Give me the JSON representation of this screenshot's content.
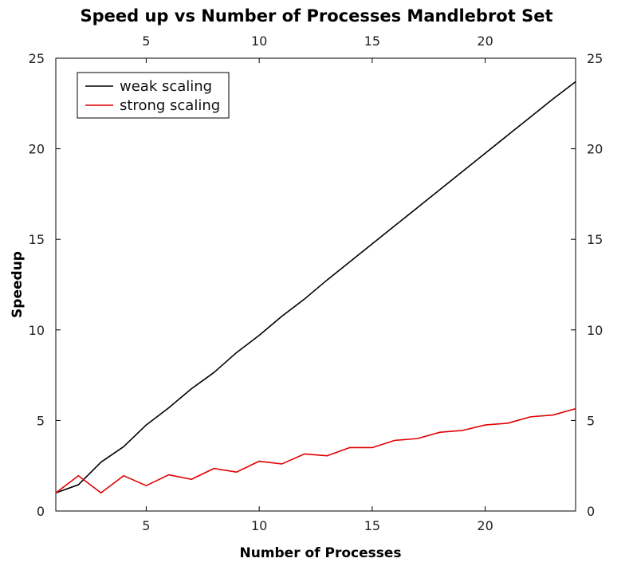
{
  "chart_data": {
    "type": "line",
    "title": "Speed up vs Number of Processes Mandlebrot Set",
    "xlabel": "Number of Processes",
    "ylabel": "Speedup",
    "xlim": [
      1,
      24
    ],
    "ylim": [
      0,
      25
    ],
    "x_ticks": [
      "5",
      "10",
      "15",
      "20"
    ],
    "x_tick_values": [
      5,
      10,
      15,
      20
    ],
    "y_ticks": [
      "0",
      "5",
      "10",
      "15",
      "20",
      "25"
    ],
    "y_tick_values": [
      0,
      5,
      10,
      15,
      20,
      25
    ],
    "grid": false,
    "legend_position": "top-left",
    "x": [
      1,
      2,
      3,
      4,
      5,
      6,
      7,
      8,
      9,
      10,
      11,
      12,
      13,
      14,
      15,
      16,
      17,
      18,
      19,
      20,
      21,
      22,
      23,
      24
    ],
    "series": [
      {
        "name": "weak scaling",
        "color": "#000000",
        "values": [
          1.0,
          1.45,
          2.7,
          3.55,
          4.75,
          5.7,
          6.75,
          7.65,
          8.75,
          9.7,
          10.75,
          11.7,
          12.75,
          13.75,
          14.75,
          15.75,
          16.75,
          17.75,
          18.75,
          19.75,
          20.75,
          21.75,
          22.75,
          23.7
        ]
      },
      {
        "name": "strong scaling",
        "color": "#e00000",
        "values": [
          1.0,
          1.95,
          1.0,
          1.95,
          1.4,
          2.0,
          1.75,
          2.35,
          2.15,
          2.75,
          2.6,
          3.15,
          3.05,
          3.5,
          3.5,
          3.9,
          4.0,
          4.35,
          4.45,
          4.75,
          4.85,
          5.2,
          5.3,
          5.65
        ]
      }
    ]
  }
}
